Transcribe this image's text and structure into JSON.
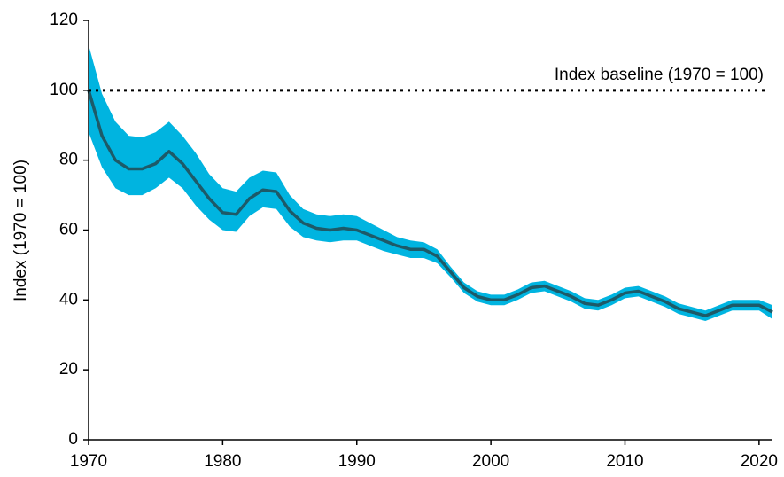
{
  "chart_data": {
    "type": "line",
    "ylabel": "Index (1970 = 100)",
    "x": [
      1970,
      1971,
      1972,
      1973,
      1974,
      1975,
      1976,
      1977,
      1978,
      1979,
      1980,
      1981,
      1982,
      1983,
      1984,
      1985,
      1986,
      1987,
      1988,
      1989,
      1990,
      1991,
      1992,
      1993,
      1994,
      1995,
      1996,
      1997,
      1998,
      1999,
      2000,
      2001,
      2002,
      2003,
      2004,
      2005,
      2006,
      2007,
      2008,
      2009,
      2010,
      2011,
      2012,
      2013,
      2014,
      2015,
      2016,
      2017,
      2018,
      2019,
      2020,
      2021
    ],
    "series": [
      {
        "color": "#1d5a68",
        "band_color": "#00b4e0",
        "values": [
          100,
          87,
          80,
          77.5,
          77.5,
          79,
          82.5,
          79,
          74,
          69,
          65,
          64.5,
          69,
          71.5,
          71,
          65.5,
          62,
          60.5,
          60,
          60.5,
          60,
          58.5,
          57,
          55.5,
          54.5,
          54.5,
          52.5,
          48,
          43.5,
          41,
          40,
          40,
          41.5,
          43.5,
          44,
          42.5,
          41,
          39,
          38.5,
          40,
          42,
          42.5,
          41,
          39.5,
          37.5,
          36.5,
          35.5,
          37,
          38.5,
          38.5,
          38.5,
          36.5
        ],
        "upper": [
          113,
          99,
          91,
          87,
          86.5,
          88,
          91,
          87,
          82,
          76,
          72,
          71,
          75,
          77,
          76.5,
          70,
          66,
          64.5,
          64,
          64.5,
          64,
          62,
          60,
          58,
          57,
          56.5,
          54.5,
          49.5,
          45,
          42.5,
          41.5,
          41.5,
          43,
          45,
          45.5,
          44,
          42.5,
          40.5,
          40,
          41.5,
          43.5,
          44,
          42.5,
          41,
          39,
          38,
          37,
          38.5,
          40,
          40,
          40,
          38.5
        ],
        "lower": [
          88,
          78,
          72,
          70,
          70,
          72,
          75,
          72,
          67,
          63,
          60,
          59.5,
          64,
          66.5,
          66,
          61,
          58,
          57,
          56.5,
          57,
          57,
          55.5,
          54,
          53,
          52,
          52,
          50.5,
          46.5,
          42,
          39.5,
          38.5,
          38.5,
          40,
          42,
          42.5,
          41,
          39.5,
          37.5,
          37,
          38.5,
          40.5,
          41,
          39.5,
          38,
          36,
          35,
          34,
          35.5,
          37,
          37,
          37,
          34.5
        ]
      }
    ],
    "baseline": {
      "value": 100,
      "label": "Index baseline (1970 = 100)"
    },
    "xlim": [
      1970,
      2021
    ],
    "xticks": [
      1970,
      1980,
      1990,
      2000,
      2010,
      2020
    ],
    "ylim": [
      0,
      120
    ],
    "yticks": [
      0,
      20,
      40,
      60,
      80,
      100,
      120
    ],
    "grid": false
  }
}
